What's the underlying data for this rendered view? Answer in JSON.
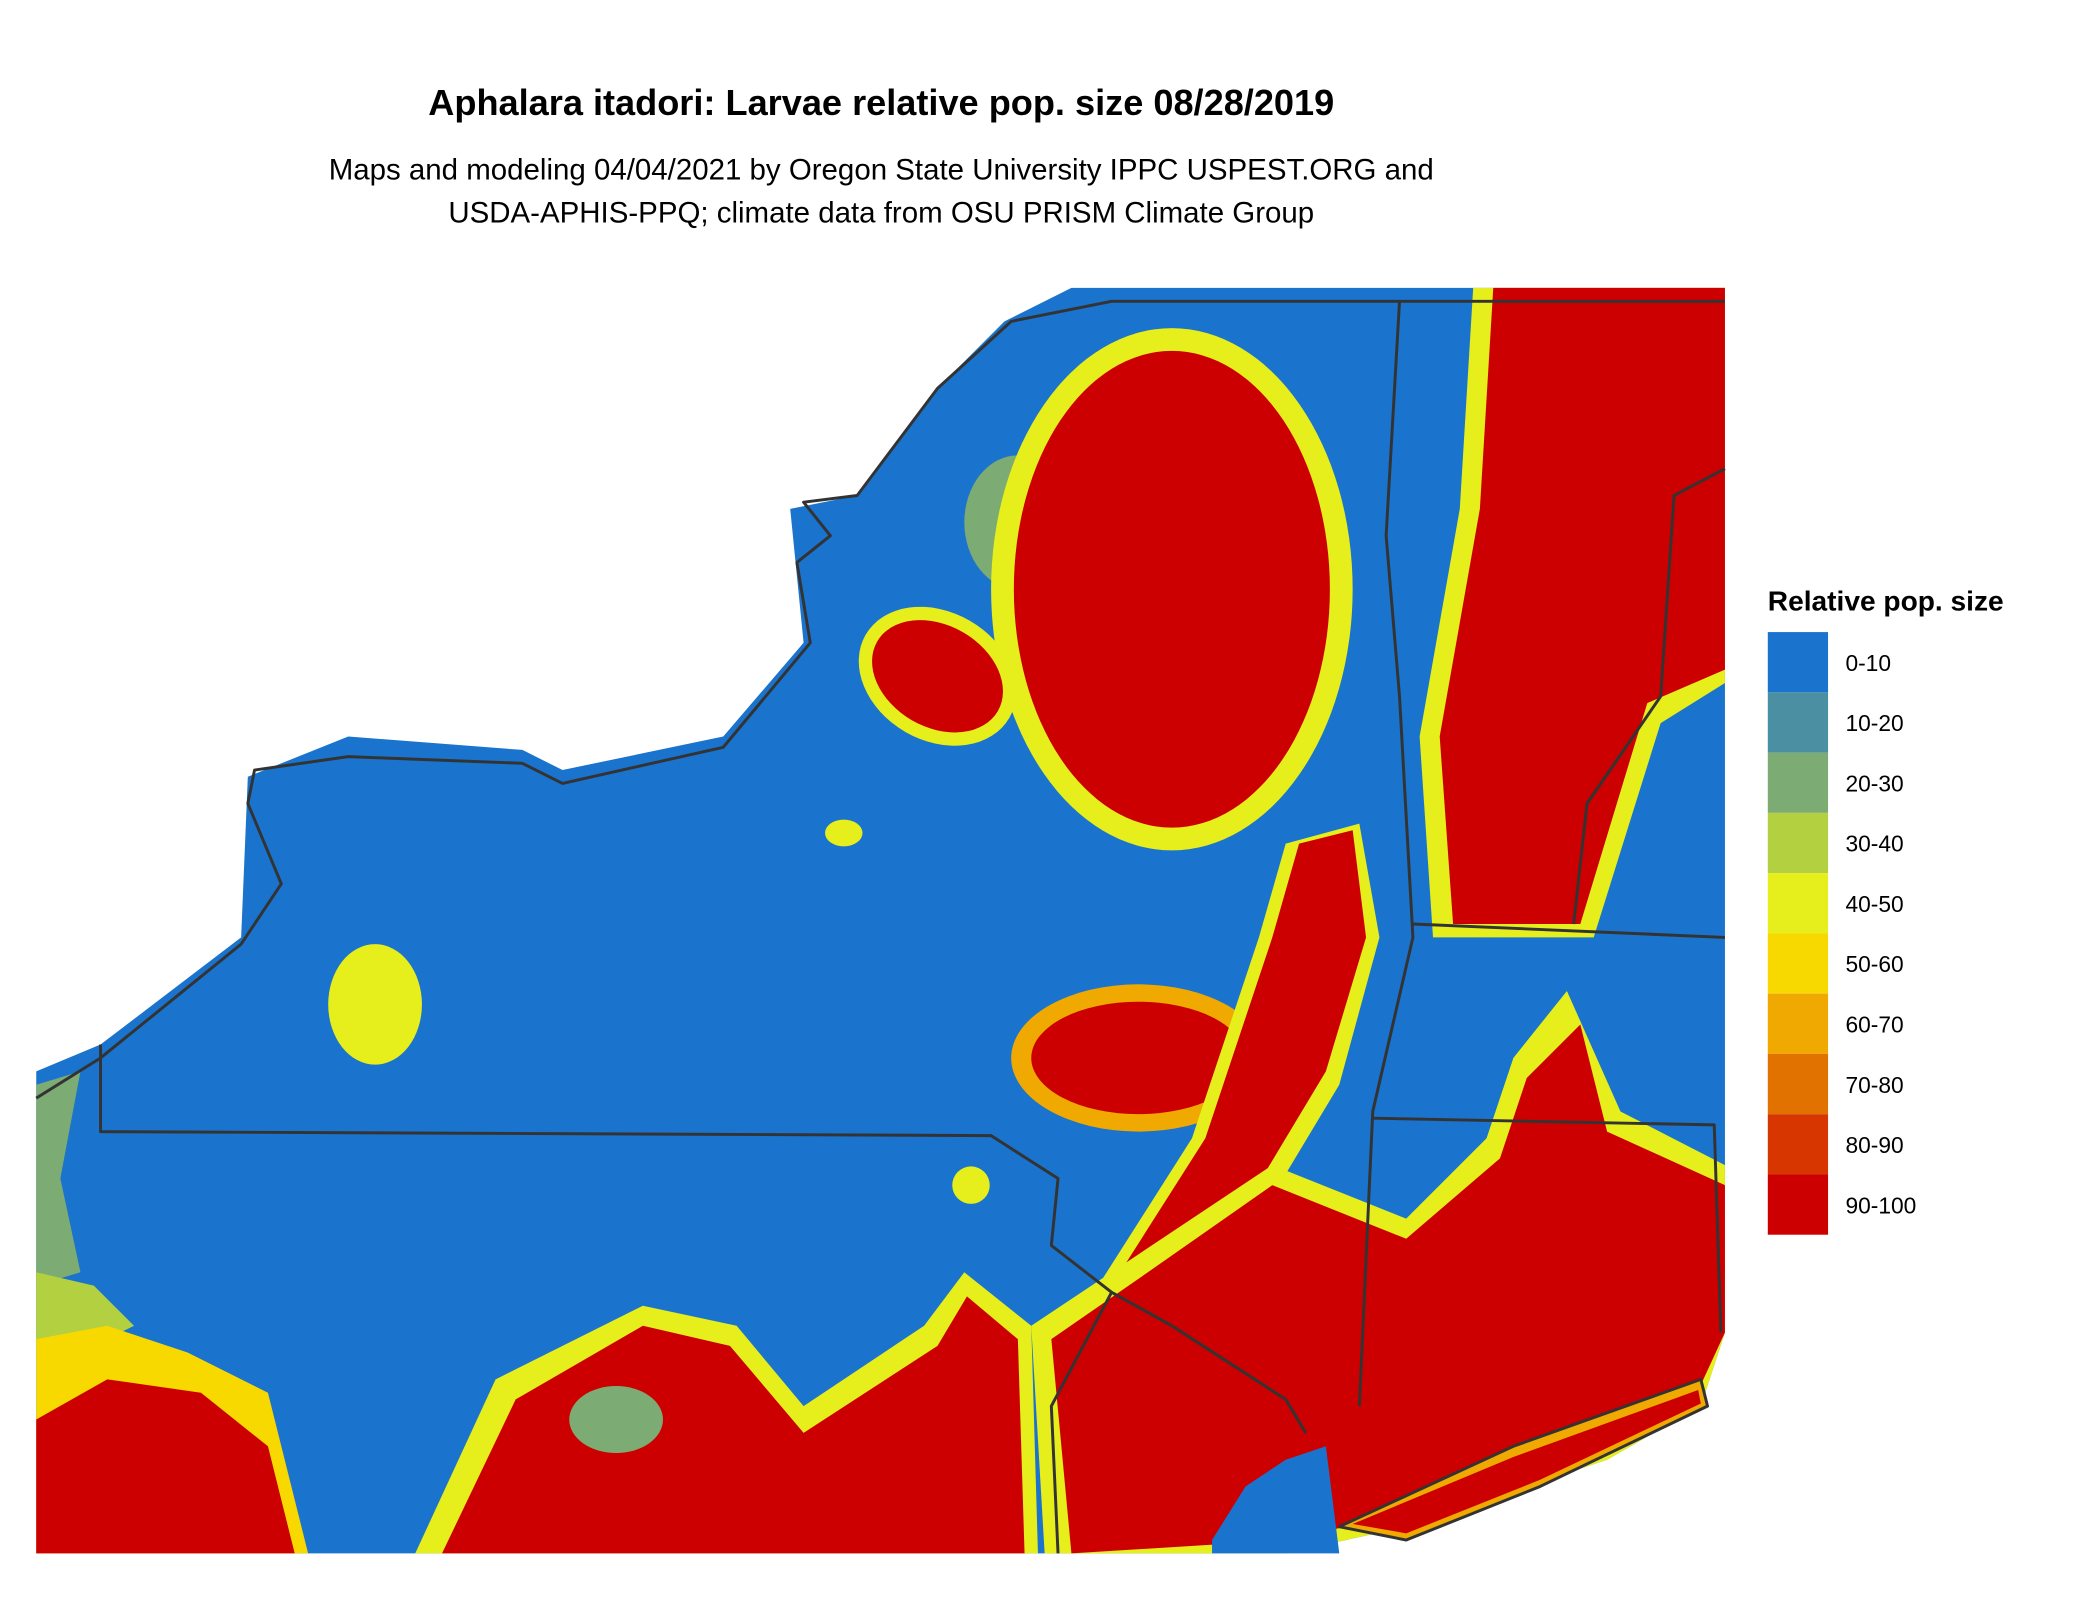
{
  "title": "Aphalara itadori: Larvae relative pop. size 08/28/2019",
  "subtitle": [
    "Maps and modeling 04/04/2021 by Oregon State University IPPC USPEST.ORG and",
    "USDA-APHIS-PPQ; climate data from OSU PRISM Climate Group"
  ],
  "legend": {
    "title": "Relative pop. size",
    "items": [
      {
        "label": "0-10",
        "color": "#1a73cc"
      },
      {
        "label": "10-20",
        "color": "#4a8fa2"
      },
      {
        "label": "20-30",
        "color": "#7cab74"
      },
      {
        "label": "30-40",
        "color": "#b2d040"
      },
      {
        "label": "40-50",
        "color": "#e6ee1c"
      },
      {
        "label": "50-60",
        "color": "#f7d900"
      },
      {
        "label": "60-70",
        "color": "#f0a900"
      },
      {
        "label": "70-80",
        "color": "#e27200"
      },
      {
        "label": "80-90",
        "color": "#d83600"
      },
      {
        "label": "90-100",
        "color": "#cc0000"
      }
    ]
  }
}
